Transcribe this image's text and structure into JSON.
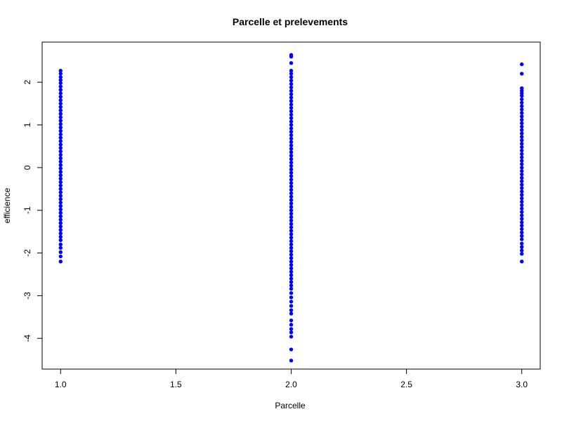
{
  "chart_data": {
    "type": "scatter",
    "title": "Parcelle et prelevements",
    "xlabel": "Parcelle",
    "ylabel": "efficience",
    "xlim": [
      0.92,
      3.08
    ],
    "ylim": [
      -4.72,
      2.94
    ],
    "x_ticks": [
      1.0,
      1.5,
      2.0,
      2.5,
      3.0
    ],
    "x_tick_labels": [
      "1.0",
      "1.5",
      "2.0",
      "2.5",
      "3.0"
    ],
    "y_ticks": [
      -4,
      -3,
      -2,
      -1,
      0,
      1,
      2
    ],
    "y_tick_labels": [
      "-4",
      "-3",
      "-2",
      "-1",
      "0",
      "1",
      "2"
    ],
    "grid": false,
    "point_color": "#0000ff",
    "series": [
      {
        "x": 1,
        "y": [
          2.27,
          2.2,
          2.12,
          2.05,
          1.98,
          1.9,
          1.82,
          1.74,
          1.66,
          1.58,
          1.5,
          1.42,
          1.34,
          1.26,
          1.18,
          1.1,
          1.02,
          0.94,
          0.86,
          0.78,
          0.7,
          0.62,
          0.54,
          0.46,
          0.38,
          0.3,
          0.22,
          0.14,
          0.06,
          -0.02,
          -0.1,
          -0.18,
          -0.26,
          -0.34,
          -0.42,
          -0.5,
          -0.58,
          -0.66,
          -0.74,
          -0.82,
          -0.9,
          -0.98,
          -1.06,
          -1.14,
          -1.22,
          -1.3,
          -1.38,
          -1.46,
          -1.54,
          -1.62,
          -1.7,
          -1.8,
          -1.88,
          -1.98,
          -2.08,
          -2.2
        ]
      },
      {
        "x": 2,
        "y": [
          2.64,
          2.6,
          2.45,
          2.27,
          2.2,
          2.12,
          2.04,
          1.96,
          1.88,
          1.8,
          1.72,
          1.64,
          1.56,
          1.48,
          1.4,
          1.32,
          1.24,
          1.16,
          1.08,
          1.0,
          0.92,
          0.84,
          0.76,
          0.68,
          0.6,
          0.52,
          0.44,
          0.36,
          0.28,
          0.2,
          0.12,
          0.04,
          -0.04,
          -0.12,
          -0.2,
          -0.28,
          -0.36,
          -0.44,
          -0.52,
          -0.6,
          -0.68,
          -0.76,
          -0.84,
          -0.92,
          -1.0,
          -1.08,
          -1.16,
          -1.24,
          -1.32,
          -1.4,
          -1.48,
          -1.56,
          -1.64,
          -1.72,
          -1.8,
          -1.88,
          -1.96,
          -2.04,
          -2.12,
          -2.2,
          -2.28,
          -2.36,
          -2.44,
          -2.52,
          -2.6,
          -2.68,
          -2.76,
          -2.84,
          -2.94,
          -3.04,
          -3.14,
          -3.24,
          -3.34,
          -3.42,
          -3.58,
          -3.68,
          -3.78,
          -3.86,
          -3.96,
          -4.26,
          -4.52
        ]
      },
      {
        "x": 3,
        "y": [
          2.42,
          2.2,
          1.86,
          1.8,
          1.74,
          1.68,
          1.6,
          1.52,
          1.44,
          1.36,
          1.28,
          1.2,
          1.12,
          1.04,
          0.96,
          0.88,
          0.8,
          0.72,
          0.64,
          0.56,
          0.48,
          0.4,
          0.32,
          0.24,
          0.16,
          0.08,
          0.0,
          -0.08,
          -0.16,
          -0.24,
          -0.32,
          -0.4,
          -0.48,
          -0.56,
          -0.64,
          -0.72,
          -0.8,
          -0.88,
          -0.96,
          -1.04,
          -1.12,
          -1.2,
          -1.28,
          -1.36,
          -1.44,
          -1.52,
          -1.6,
          -1.68,
          -1.78,
          -1.86,
          -1.94,
          -2.02,
          -2.2
        ]
      }
    ]
  }
}
